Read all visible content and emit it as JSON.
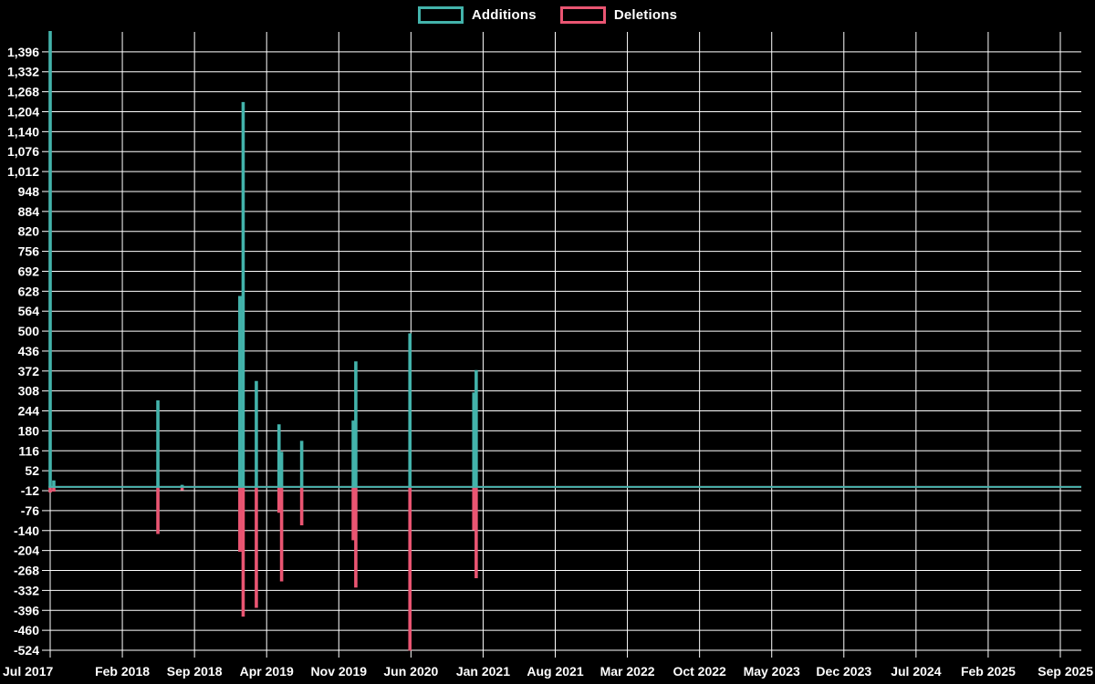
{
  "page": {
    "background": "#000000",
    "text_color": "#ffffff",
    "gridline_color": "#ffffff"
  },
  "legend": {
    "items": [
      {
        "label": "Additions",
        "color": "#43b3ab"
      },
      {
        "label": "Deletions",
        "color": "#ea5572"
      }
    ]
  },
  "chart_data": {
    "type": "line",
    "title": "",
    "xlabel": "",
    "ylabel": "",
    "grid": true,
    "legend_position": "top-center",
    "x_tick_labels": [
      "Jul 2017",
      "Feb 2018",
      "Sep 2018",
      "Apr 2019",
      "Nov 2019",
      "Jun 2020",
      "Jan 2021",
      "Aug 2021",
      "Mar 2022",
      "Oct 2022",
      "May 2023",
      "Dec 2023",
      "Jul 2024",
      "Feb 2025",
      "Sep 2025"
    ],
    "y_tick_values": [
      1396,
      1332,
      1268,
      1204,
      1140,
      1076,
      1012,
      948,
      884,
      820,
      756,
      692,
      628,
      564,
      500,
      436,
      372,
      308,
      244,
      180,
      116,
      52,
      -12,
      -76,
      -140,
      -204,
      -268,
      -332,
      -396,
      -460,
      -524
    ],
    "y_axis": {
      "min": -524,
      "max": 1460,
      "tick_step": 64
    },
    "x_axis": {
      "start": "Jul 2017",
      "end": "Sep 2025",
      "months_total": 98,
      "tick_interval_months": 7
    },
    "series": [
      {
        "name": "Additions",
        "color": "#43b3ab",
        "baseline_value": 0
      },
      {
        "name": "Deletions",
        "color": "#ea5572",
        "baseline_value": 0
      }
    ],
    "events": [
      {
        "date": "Jul 2017 (wk 1)",
        "x_months": 0.0,
        "additions": 1460,
        "deletions": -15
      },
      {
        "date": "Jul 2017 (wk 2)",
        "x_months": 0.35,
        "additions": 18,
        "deletions": -12
      },
      {
        "date": "May 2018",
        "x_months": 10.45,
        "additions": 275,
        "deletions": -148
      },
      {
        "date": "Jul 2018",
        "x_months": 12.8,
        "additions": 4,
        "deletions": -8
      },
      {
        "date": "Jan 2019 (wk 1)",
        "x_months": 18.4,
        "additions": 610,
        "deletions": -205
      },
      {
        "date": "Jan 2019 (wk 2)",
        "x_months": 18.72,
        "additions": 1232,
        "deletions": -413
      },
      {
        "date": "Mar 2019",
        "x_months": 20.0,
        "additions": 337,
        "deletions": -385
      },
      {
        "date": "May 2019 (wk 1)",
        "x_months": 22.2,
        "additions": 198,
        "deletions": -80
      },
      {
        "date": "May 2019 (wk 2)",
        "x_months": 22.45,
        "additions": 110,
        "deletions": -300
      },
      {
        "date": "Jul 2019",
        "x_months": 24.4,
        "additions": 145,
        "deletions": -120
      },
      {
        "date": "Dec 2019 (wk 1)",
        "x_months": 29.4,
        "additions": 210,
        "deletions": -168
      },
      {
        "date": "Dec 2019 (wk 2)",
        "x_months": 29.65,
        "additions": 400,
        "deletions": -320
      },
      {
        "date": "Jun 2020",
        "x_months": 34.9,
        "additions": 490,
        "deletions": -522
      },
      {
        "date": "Dec 2020",
        "x_months": 41.1,
        "additions": 300,
        "deletions": -136
      },
      {
        "date": "Jan 2021",
        "x_months": 41.33,
        "additions": 372,
        "deletions": -290
      }
    ],
    "flat_after": "Jan 2021",
    "flat_value": 0
  }
}
